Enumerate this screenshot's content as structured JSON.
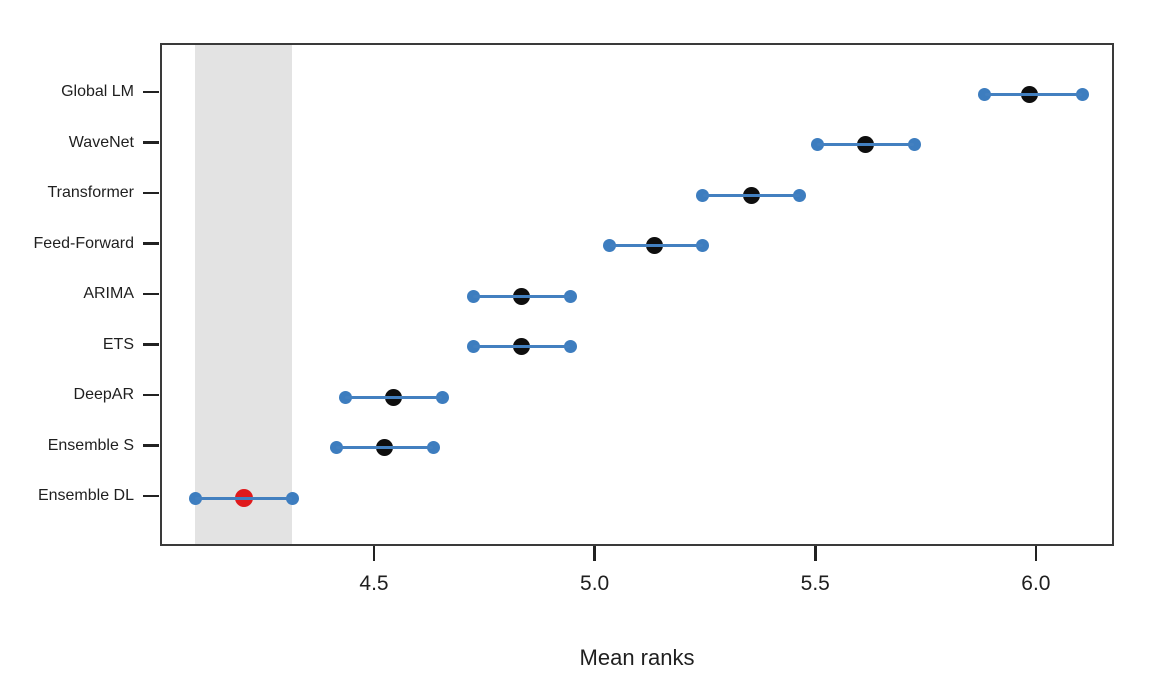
{
  "chart_data": {
    "type": "scatter",
    "subtype": "mean-ranks-interval-plot",
    "title": "",
    "xlabel": "Mean ranks",
    "ylabel": "",
    "grid": false,
    "legend": "none",
    "xlim": [
      4.015,
      6.177
    ],
    "x_ticks": [
      {
        "value": 4.5,
        "label": "4.5"
      },
      {
        "value": 5.0,
        "label": "5.0"
      },
      {
        "value": 5.5,
        "label": "5.5"
      },
      {
        "value": 6.0,
        "label": "6.0"
      }
    ],
    "highlight_band": {
      "from": 4.09,
      "to": 4.31
    },
    "series": [
      {
        "label": "Global LM",
        "mean": 5.98,
        "lower": 5.88,
        "upper": 6.1,
        "best": false
      },
      {
        "label": "WaveNet",
        "mean": 5.61,
        "lower": 5.5,
        "upper": 5.72,
        "best": false
      },
      {
        "label": "Transformer",
        "mean": 5.35,
        "lower": 5.24,
        "upper": 5.46,
        "best": false
      },
      {
        "label": "Feed-Forward",
        "mean": 5.13,
        "lower": 5.03,
        "upper": 5.24,
        "best": false
      },
      {
        "label": "ARIMA",
        "mean": 4.83,
        "lower": 4.72,
        "upper": 4.94,
        "best": false
      },
      {
        "label": "ETS",
        "mean": 4.83,
        "lower": 4.72,
        "upper": 4.94,
        "best": false
      },
      {
        "label": "DeepAR",
        "mean": 4.54,
        "lower": 4.43,
        "upper": 4.65,
        "best": false
      },
      {
        "label": "Ensemble S",
        "mean": 4.52,
        "lower": 4.41,
        "upper": 4.63,
        "best": false
      },
      {
        "label": "Ensemble DL",
        "mean": 4.2,
        "lower": 4.09,
        "upper": 4.31,
        "best": true
      }
    ],
    "colors": {
      "interval_line": "#4380c0",
      "endpoint_dot": "#3d7dbf",
      "mean_dot": "#0e0e0e",
      "best_mean_dot": "#e01a1c",
      "band": "#e3e3e3",
      "axis": "#222222",
      "text": "#1f1f1f"
    }
  }
}
